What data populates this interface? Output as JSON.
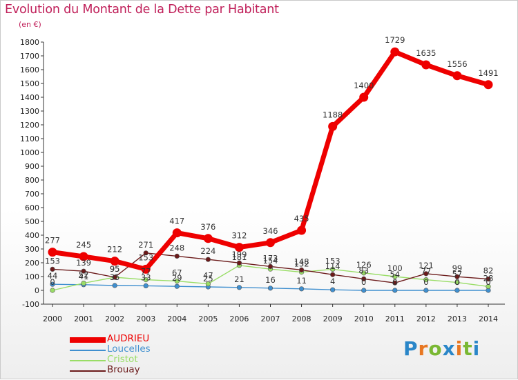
{
  "chart_data": {
    "type": "line",
    "title": "Evolution du Montant de la Dette par Habitant",
    "unit": "(en €)",
    "xlabel": "",
    "ylabel": "",
    "x": [
      "2000",
      "2001",
      "2002",
      "2003",
      "2004",
      "2005",
      "2006",
      "2007",
      "2008",
      "2009",
      "2010",
      "2011",
      "2012",
      "2013",
      "2014"
    ],
    "ylim": [
      -100,
      1800
    ],
    "yticks": [
      -100,
      0,
      100,
      200,
      300,
      400,
      500,
      600,
      700,
      800,
      900,
      1000,
      1100,
      1200,
      1300,
      1400,
      1500,
      1600,
      1700,
      1800
    ],
    "grid": false,
    "legend_position": "bottom-left",
    "series": [
      {
        "name": "AUDRIEU",
        "color": "#ee0000",
        "values": [
          277,
          245,
          212,
          153,
          417,
          376,
          312,
          346,
          435,
          1188,
          1400,
          1729,
          1635,
          1556,
          1491
        ]
      },
      {
        "name": "Loucelles",
        "color": "#3f8fcf",
        "values": [
          44,
          41,
          35,
          33,
          29,
          25,
          21,
          16,
          11,
          4,
          0,
          0,
          0,
          0,
          0
        ]
      },
      {
        "name": "Cristot",
        "color": "#99dd66",
        "values": [
          0,
          52,
          95,
          77,
          67,
          47,
          181,
          154,
          132,
          153,
          126,
          100,
          77,
          57,
          28
        ]
      },
      {
        "name": "Brouay",
        "color": "#6b1a1a",
        "values": [
          153,
          139,
          95,
          271,
          248,
          224,
          199,
          173,
          148,
          114,
          83,
          54,
          121,
          99,
          82
        ]
      }
    ]
  },
  "brand": {
    "letters": [
      "P",
      "r",
      "o",
      "x",
      "i",
      "t",
      "i"
    ],
    "colors": [
      "#2a86c8",
      "#e87722",
      "#7ab833",
      "#2a86c8",
      "#e87722",
      "#7ab833",
      "#2a86c8"
    ]
  }
}
